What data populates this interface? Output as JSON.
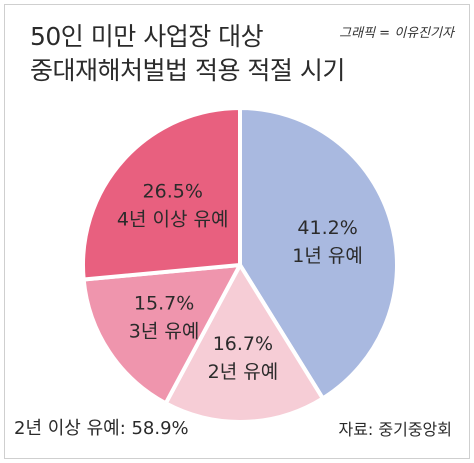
{
  "title_line1": "50인 미만 사업장 대상",
  "title_line2": "중대재해처벌법 적용 적절 시기",
  "credit": "그래픽 = 이유진기자",
  "summary_note": "2년 이상 유예: 58.9%",
  "source": "자료: 중기중앙회",
  "chart_data": {
    "type": "pie",
    "title": "50인 미만 사업장 대상 중대재해처벌법 적용 적절 시기",
    "start_angle_deg": 0,
    "direction": "clockwise",
    "slices": [
      {
        "label": "1년 유예",
        "value": 41.2,
        "value_label": "41.2%",
        "color": "#a9b9e0"
      },
      {
        "label": "2년 유예",
        "value": 16.7,
        "value_label": "16.7%",
        "color": "#f6cdd6"
      },
      {
        "label": "3년 유예",
        "value": 15.7,
        "value_label": "15.7%",
        "color": "#ef95ad"
      },
      {
        "label": "4년 이상 유예",
        "value": 26.5,
        "value_label": "26.5%",
        "color": "#e8607f"
      }
    ]
  }
}
